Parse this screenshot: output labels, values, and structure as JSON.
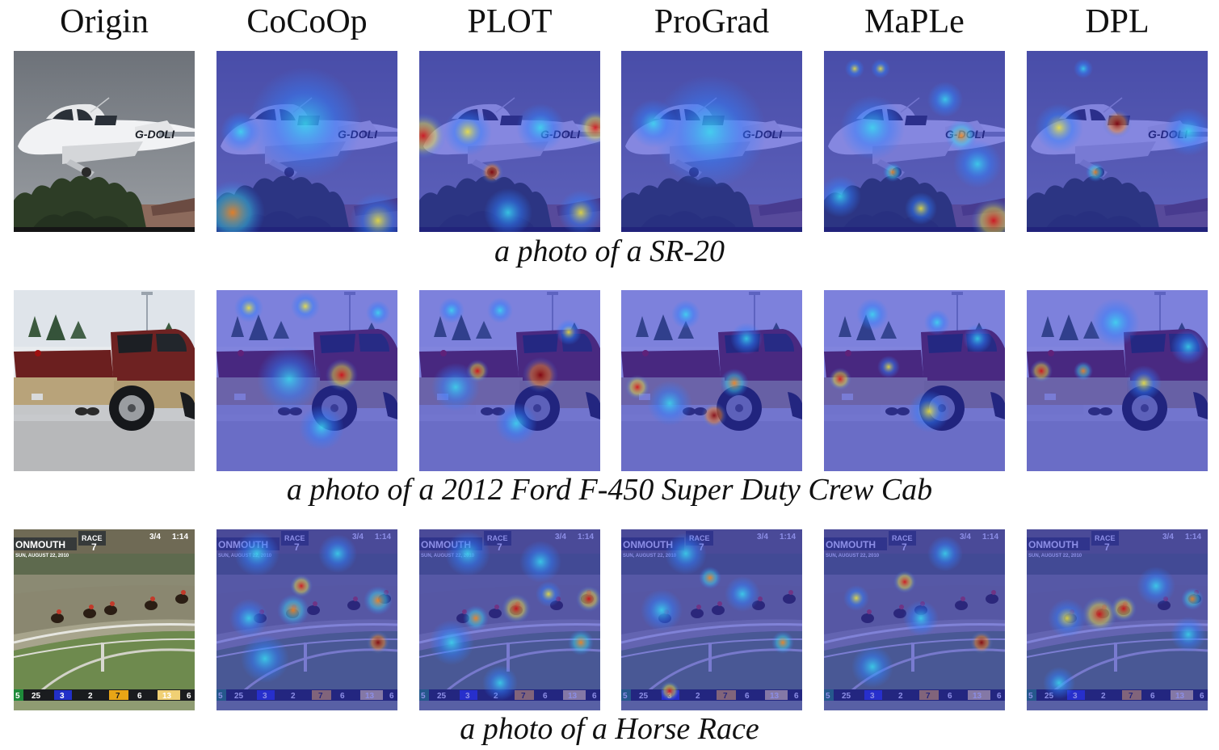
{
  "columns": [
    "Origin",
    "CoCoOp",
    "PLOT",
    "ProGrad",
    "MaPLe",
    "DPL"
  ],
  "rows": [
    {
      "caption": "a photo of a SR-20",
      "plate": "G-DOLI"
    },
    {
      "caption": "a photo of a 2012 Ford F-450 Super Duty Crew Cab"
    },
    {
      "caption": "a photo of a Horse Race",
      "hud": {
        "banner": "ONMOUTH",
        "race": "RACE",
        "race_num": "7",
        "date": "SUN, AUGUST 22, 2010",
        "fraction": "3/4",
        "time": "1:14",
        "post": "5",
        "numbers": [
          "25",
          "3",
          "2",
          "7",
          "6",
          "13",
          "6"
        ]
      }
    }
  ],
  "heatmap_colors": [
    "#2b2fd0",
    "#2f7fff",
    "#3ad9f0",
    "#f2e93c",
    "#ff8a1a",
    "#e01010",
    "#8a0000"
  ]
}
